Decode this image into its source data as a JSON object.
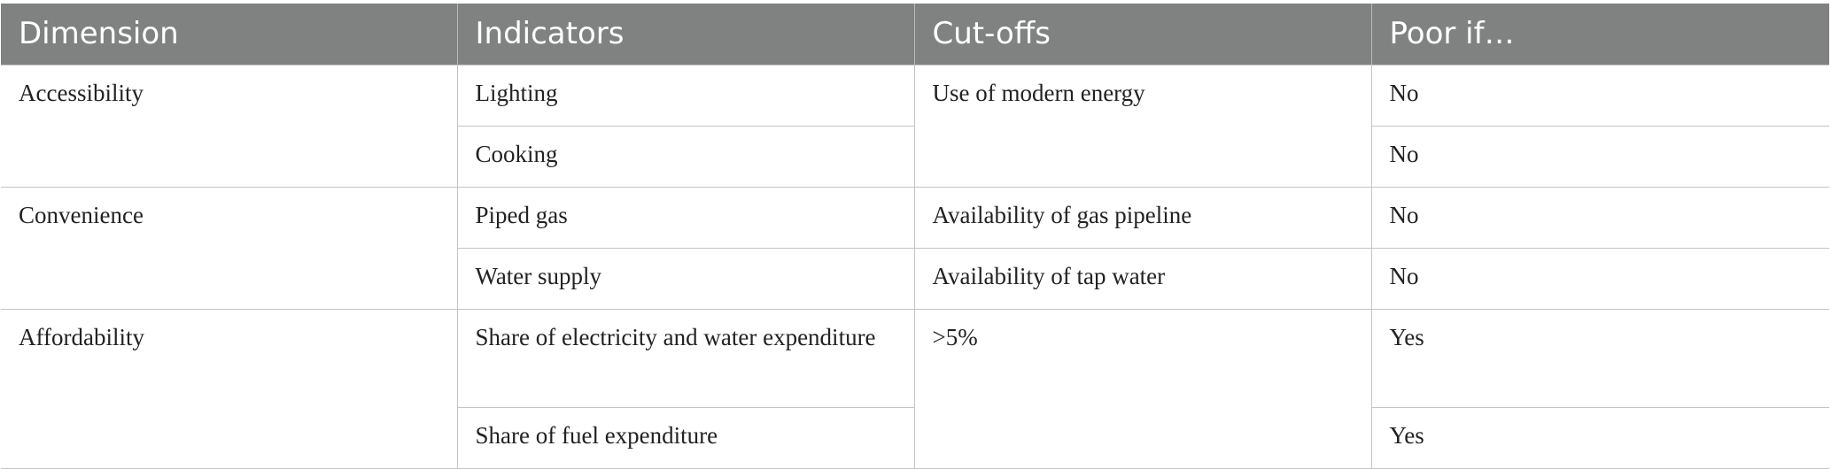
{
  "table": {
    "headers": [
      "Dimension",
      "Indicators",
      "Cut-offs",
      "Poor if…"
    ],
    "rows": [
      {
        "dimension": "Accessibility",
        "indicator": "Lighting",
        "cutoff": "Use of modern energy",
        "poor_if": "No"
      },
      {
        "dimension": "",
        "indicator": "Cooking",
        "cutoff": "",
        "poor_if": "No"
      },
      {
        "dimension": "Convenience",
        "indicator": "Piped gas",
        "cutoff": "Availability of gas pipeline",
        "poor_if": "No"
      },
      {
        "dimension": "",
        "indicator": "Water supply",
        "cutoff": "Availability of tap water",
        "poor_if": "No"
      },
      {
        "dimension": "Affordability",
        "indicator": "Share of electricity and water expenditure",
        "cutoff": ">5%",
        "poor_if": "Yes"
      },
      {
        "dimension": "",
        "indicator": "Share of fuel expenditure",
        "cutoff": "",
        "poor_if": "Yes"
      }
    ]
  },
  "colors": {
    "header_bg": "#808281",
    "header_text": "#ffffff",
    "border": "#c4c4c4",
    "body_text": "#222222"
  }
}
